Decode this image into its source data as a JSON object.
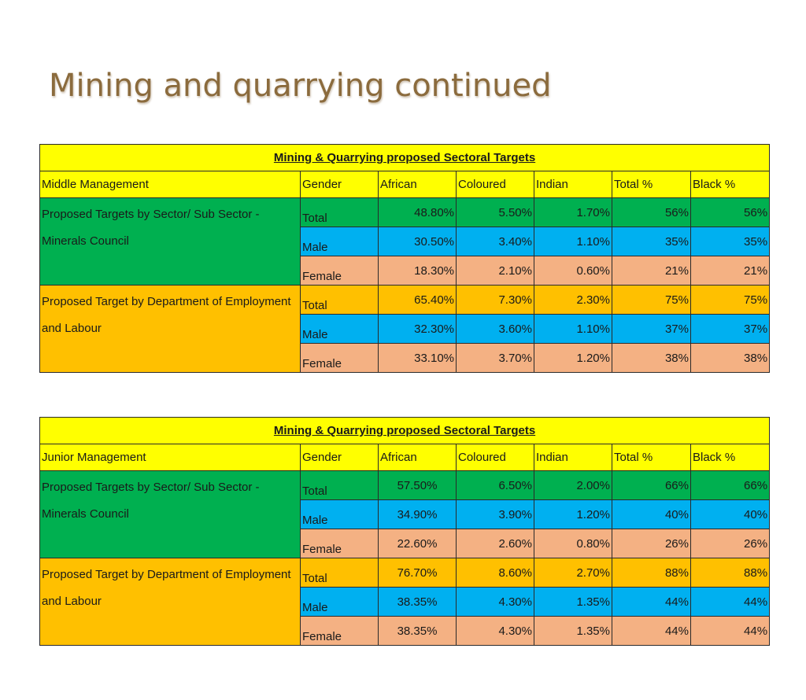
{
  "slide": {
    "title": "Mining and quarrying continued"
  },
  "colors": {
    "title": "#8B6B3D",
    "header_yellow": "#FFFF00",
    "sector_green": "#00B050",
    "male_blue": "#00B0F0",
    "female_salmon": "#F4B183",
    "department_orange": "#FFC000"
  },
  "columns": {
    "gender": "Gender",
    "african": "African",
    "coloured": "Coloured",
    "indian": "Indian",
    "total_pct": "Total %",
    "black_pct": "Black %"
  },
  "tables": [
    {
      "caption": "Mining & Quarrying proposed Sectoral Targets",
      "level": "Middle  Management",
      "groups": [
        {
          "label": "Proposed Targets by Sector/ Sub Sector - Minerals Council",
          "rows": [
            {
              "gender": "Total",
              "african": "48.80%",
              "coloured": "5.50%",
              "indian": "1.70%",
              "total_pct": "56%",
              "black_pct": "56%"
            },
            {
              "gender": "Male",
              "african": "30.50%",
              "coloured": "3.40%",
              "indian": "1.10%",
              "total_pct": "35%",
              "black_pct": "35%"
            },
            {
              "gender": "Female",
              "african": "18.30%",
              "coloured": "2.10%",
              "indian": "0.60%",
              "total_pct": "21%",
              "black_pct": "21%"
            }
          ]
        },
        {
          "label": "Proposed Target by Department of Employment and Labour",
          "rows": [
            {
              "gender": "Total",
              "african": "65.40%",
              "coloured": "7.30%",
              "indian": "2.30%",
              "total_pct": "75%",
              "black_pct": "75%"
            },
            {
              "gender": "Male",
              "african": "32.30%",
              "coloured": "3.60%",
              "indian": "1.10%",
              "total_pct": "37%",
              "black_pct": "37%"
            },
            {
              "gender": "Female",
              "african": "33.10%",
              "coloured": "3.70%",
              "indian": "1.20%",
              "total_pct": "38%",
              "black_pct": "38%"
            }
          ]
        }
      ]
    },
    {
      "caption": "Mining & Quarrying proposed Sectoral Targets",
      "level": "Junior  Management",
      "groups": [
        {
          "label": "Proposed Targets by Sector/ Sub Sector - Minerals Council",
          "rows": [
            {
              "gender": "Total",
              "african": "57.50%",
              "coloured": "6.50%",
              "indian": "2.00%",
              "total_pct": "66%",
              "black_pct": "66%"
            },
            {
              "gender": "Male",
              "african": "34.90%",
              "coloured": "3.90%",
              "indian": "1.20%",
              "total_pct": "40%",
              "black_pct": "40%"
            },
            {
              "gender": "Female",
              "african": "22.60%",
              "coloured": "2.60%",
              "indian": "0.80%",
              "total_pct": "26%",
              "black_pct": "26%"
            }
          ]
        },
        {
          "label": "Proposed Target by Department of Employment and Labour",
          "rows": [
            {
              "gender": "Total",
              "african": "76.70%",
              "coloured": "8.60%",
              "indian": "2.70%",
              "total_pct": "88%",
              "black_pct": "88%"
            },
            {
              "gender": "Male",
              "african": "38.35%",
              "coloured": "4.30%",
              "indian": "1.35%",
              "total_pct": "44%",
              "black_pct": "44%"
            },
            {
              "gender": "Female",
              "african": "38.35%",
              "coloured": "4.30%",
              "indian": "1.35%",
              "total_pct": "44%",
              "black_pct": "44%"
            }
          ]
        }
      ]
    }
  ]
}
